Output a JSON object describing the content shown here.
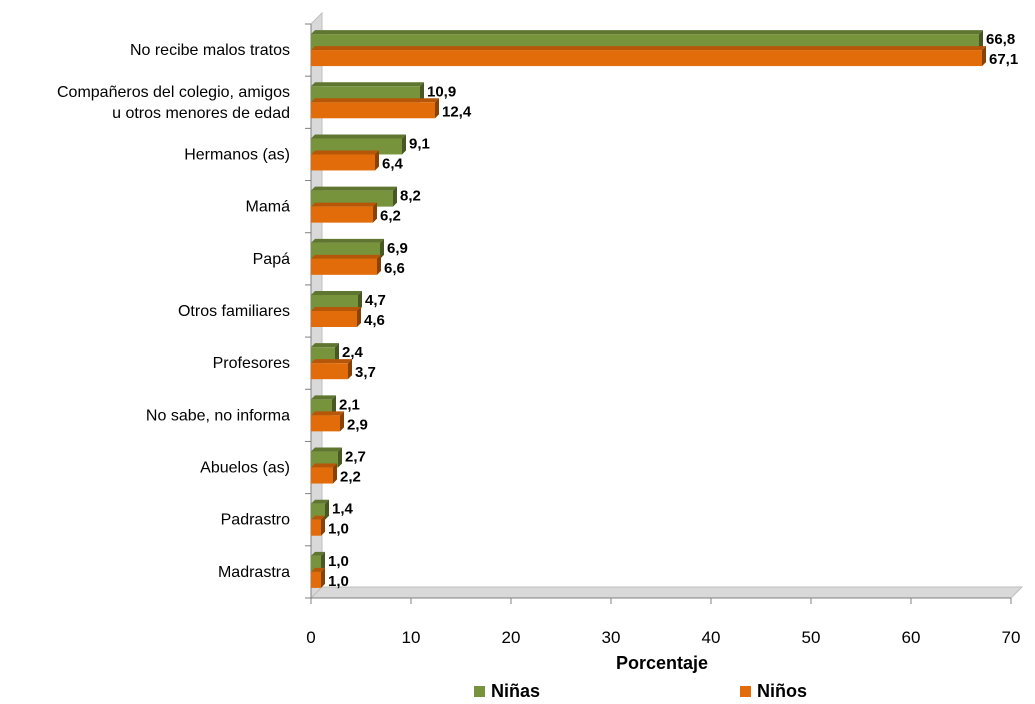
{
  "chart_data": {
    "type": "bar",
    "orientation": "horizontal",
    "categories": [
      [
        "No recibe malos tratos"
      ],
      [
        "Compañeros del colegio, amigos",
        "u otros menores de edad"
      ],
      [
        "Hermanos (as)"
      ],
      [
        "Mamá"
      ],
      [
        "Papá"
      ],
      [
        "Otros familiares"
      ],
      [
        "Profesores"
      ],
      [
        "No sabe, no informa"
      ],
      [
        "Abuelos (as)"
      ],
      [
        "Padrastro"
      ],
      [
        "Madrastra"
      ]
    ],
    "series": [
      {
        "name": "Niñas",
        "color": "#77933c",
        "values": [
          66.8,
          10.9,
          9.1,
          8.2,
          6.9,
          4.7,
          2.4,
          2.1,
          2.7,
          1.4,
          1.0
        ],
        "labels": [
          "66,8",
          "10,9",
          "9,1",
          "8,2",
          "6,9",
          "4,7",
          "2,4",
          "2,1",
          "2,7",
          "1,4",
          "1,0"
        ]
      },
      {
        "name": "Niños",
        "color": "#e36c0a",
        "values": [
          67.1,
          12.4,
          6.4,
          6.2,
          6.6,
          4.6,
          3.7,
          2.9,
          2.2,
          1.0,
          1.0
        ],
        "labels": [
          "67,1",
          "12,4",
          "6,4",
          "6,2",
          "6,6",
          "4,6",
          "3,7",
          "2,9",
          "2,2",
          "1,0",
          "1,0"
        ]
      }
    ],
    "xlabel": "Porcentaje",
    "ylabel": "",
    "xlim": [
      0,
      70
    ],
    "xticks": [
      "0",
      "10",
      "20",
      "30",
      "40",
      "50",
      "60",
      "70"
    ],
    "grid": false,
    "legend_position": "bottom"
  }
}
